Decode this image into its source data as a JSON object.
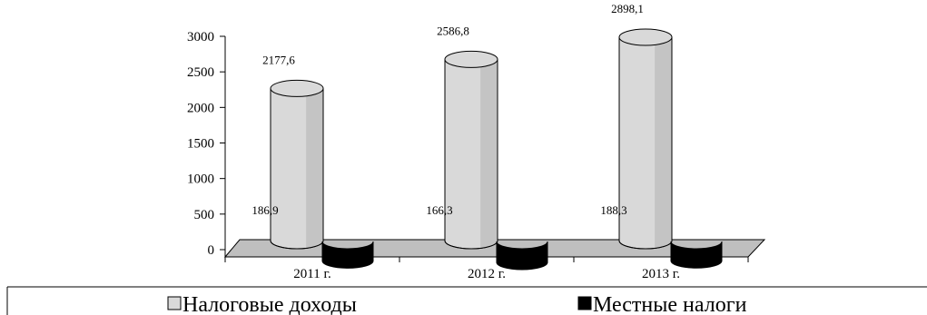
{
  "chart_data": {
    "type": "bar",
    "style": "3d-cylinder",
    "categories": [
      "2011 г.",
      "2012 г.",
      "2013 г."
    ],
    "series": [
      {
        "name": "Налоговые доходы",
        "values": [
          2177.6,
          2586.8,
          2898.1
        ],
        "labels": [
          "2177,6",
          "2586,8",
          "2898,1"
        ],
        "color": "#d9d9d9"
      },
      {
        "name": "Местные налоги",
        "values": [
          186.9,
          166.3,
          188.3
        ],
        "labels": [
          "186,9",
          "166,3",
          "188,3"
        ],
        "color": "#000000"
      }
    ],
    "ylim": [
      0,
      3000
    ],
    "yticks": [
      "0",
      "500",
      "1000",
      "1500",
      "2000",
      "2500",
      "3000"
    ],
    "grid": false,
    "legend": "bottom",
    "title": "",
    "xlabel": "",
    "ylabel": ""
  }
}
